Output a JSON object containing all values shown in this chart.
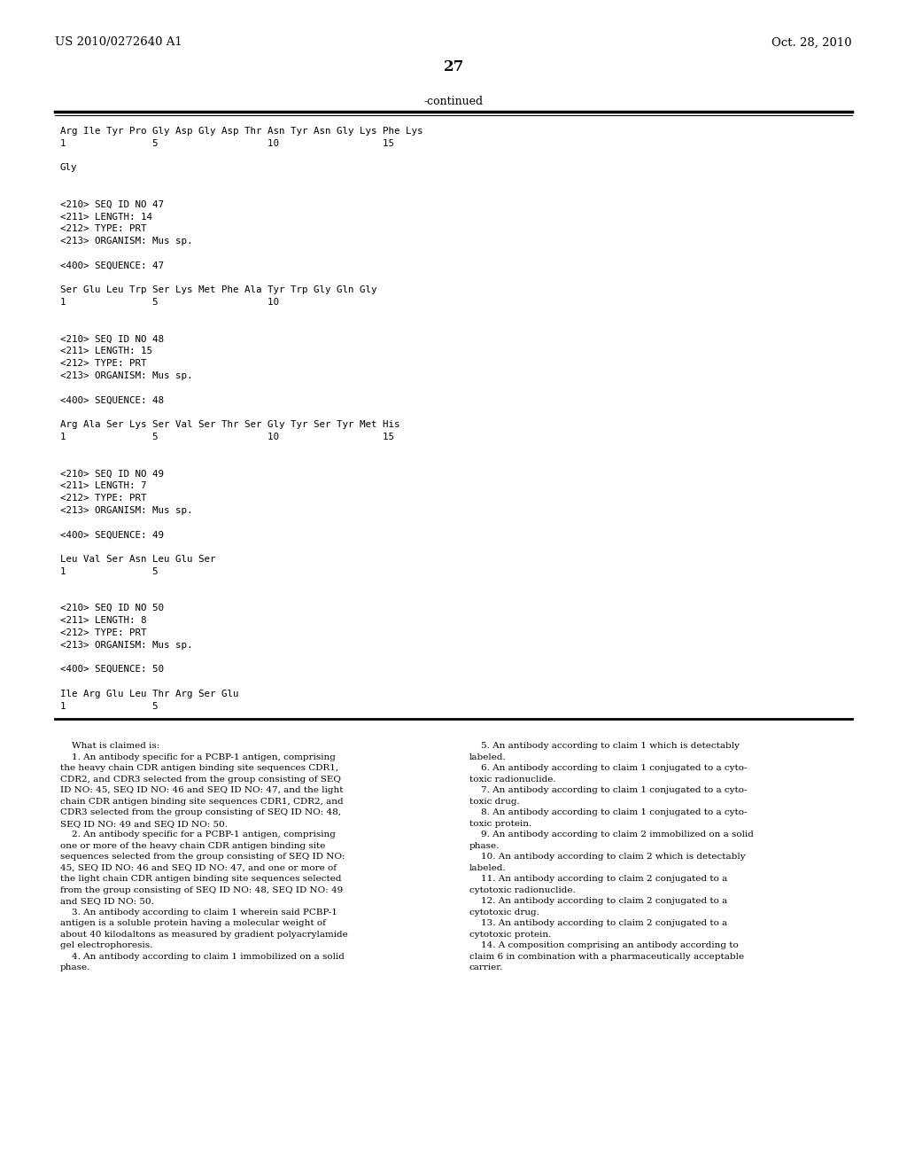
{
  "bg_color": "#ffffff",
  "header_left": "US 2010/0272640 A1",
  "header_right": "Oct. 28, 2010",
  "page_number": "27",
  "continued_label": "-continued",
  "monospace_lines": [
    "Arg Ile Tyr Pro Gly Asp Gly Asp Thr Asn Tyr Asn Gly Lys Phe Lys",
    "1               5                   10                  15",
    "",
    "Gly",
    "",
    "",
    "<210> SEQ ID NO 47",
    "<211> LENGTH: 14",
    "<212> TYPE: PRT",
    "<213> ORGANISM: Mus sp.",
    "",
    "<400> SEQUENCE: 47",
    "",
    "Ser Glu Leu Trp Ser Lys Met Phe Ala Tyr Trp Gly Gln Gly",
    "1               5                   10",
    "",
    "",
    "<210> SEQ ID NO 48",
    "<211> LENGTH: 15",
    "<212> TYPE: PRT",
    "<213> ORGANISM: Mus sp.",
    "",
    "<400> SEQUENCE: 48",
    "",
    "Arg Ala Ser Lys Ser Val Ser Thr Ser Gly Tyr Ser Tyr Met His",
    "1               5                   10                  15",
    "",
    "",
    "<210> SEQ ID NO 49",
    "<211> LENGTH: 7",
    "<212> TYPE: PRT",
    "<213> ORGANISM: Mus sp.",
    "",
    "<400> SEQUENCE: 49",
    "",
    "Leu Val Ser Asn Leu Glu Ser",
    "1               5",
    "",
    "",
    "<210> SEQ ID NO 50",
    "<211> LENGTH: 8",
    "<212> TYPE: PRT",
    "<213> ORGANISM: Mus sp.",
    "",
    "<400> SEQUENCE: 50",
    "",
    "Ile Arg Glu Leu Thr Arg Ser Glu",
    "1               5"
  ],
  "claims_left": [
    "    What is claimed is:",
    "    1. An antibody specific for a PCBP-1 antigen, comprising",
    "the heavy chain CDR antigen binding site sequences CDR1,",
    "CDR2, and CDR3 selected from the group consisting of SEQ",
    "ID NO: 45, SEQ ID NO: 46 and SEQ ID NO: 47, and the light",
    "chain CDR antigen binding site sequences CDR1, CDR2, and",
    "CDR3 selected from the group consisting of SEQ ID NO: 48,",
    "SEQ ID NO: 49 and SEQ ID NO: 50.",
    "    2. An antibody specific for a PCBP-1 antigen, comprising",
    "one or more of the heavy chain CDR antigen binding site",
    "sequences selected from the group consisting of SEQ ID NO:",
    "45, SEQ ID NO: 46 and SEQ ID NO: 47, and one or more of",
    "the light chain CDR antigen binding site sequences selected",
    "from the group consisting of SEQ ID NO: 48, SEQ ID NO: 49",
    "and SEQ ID NO: 50.",
    "    3. An antibody according to claim 1 wherein said PCBP-1",
    "antigen is a soluble protein having a molecular weight of",
    "about 40 kilodaltons as measured by gradient polyacrylamide",
    "gel electrophoresis.",
    "    4. An antibody according to claim 1 immobilized on a solid",
    "phase."
  ],
  "claims_right": [
    "    5. An antibody according to claim 1 which is detectably",
    "labeled.",
    "    6. An antibody according to claim 1 conjugated to a cyto-",
    "toxic radionuclide.",
    "    7. An antibody according to claim 1 conjugated to a cyto-",
    "toxic drug.",
    "    8. An antibody according to claim 1 conjugated to a cyto-",
    "toxic protein.",
    "    9. An antibody according to claim 2 immobilized on a solid",
    "phase.",
    "    10. An antibody according to claim 2 which is detectably",
    "labeled.",
    "    11. An antibody according to claim 2 conjugated to a",
    "cytotoxic radionuclide.",
    "    12. An antibody according to claim 2 conjugated to a",
    "cytotoxic drug.",
    "    13. An antibody according to claim 2 conjugated to a",
    "cytotoxic protein.",
    "    14. A composition comprising an antibody according to",
    "claim 6 in combination with a pharmaceutically acceptable",
    "carrier."
  ]
}
